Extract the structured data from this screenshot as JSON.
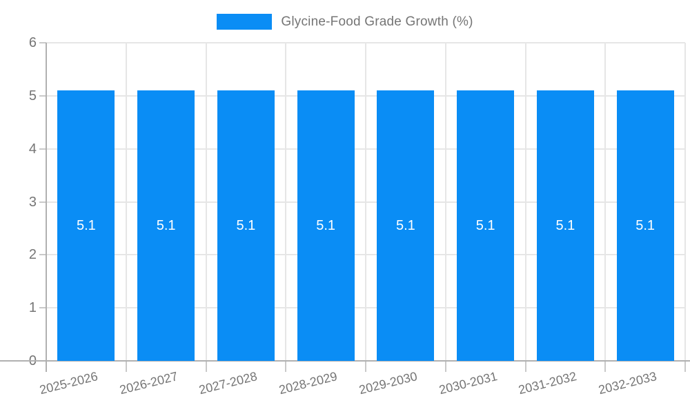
{
  "legend": {
    "label": "Glycine-Food Grade Growth (%)"
  },
  "chart_data": {
    "type": "bar",
    "title": "Glycine-Food Grade Growth (%)",
    "categories": [
      "2025-2026",
      "2026-2027",
      "2027-2028",
      "2028-2029",
      "2029-2030",
      "2030-2031",
      "2031-2032",
      "2032-2033"
    ],
    "values": [
      5.1,
      5.1,
      5.1,
      5.1,
      5.1,
      5.1,
      5.1,
      5.1
    ],
    "value_labels": [
      "5.1",
      "5.1",
      "5.1",
      "5.1",
      "5.1",
      "5.1",
      "5.1",
      "5.1"
    ],
    "xlabel": "",
    "ylabel": "",
    "ylim": [
      0,
      6
    ],
    "yticks": [
      0,
      1,
      2,
      3,
      4,
      5,
      6
    ],
    "grid": true,
    "legend_position": "top-center",
    "colors": {
      "bar": "#0a8df5",
      "axis": "#b0b0b0",
      "grid": "#e6e6e6",
      "tick": "#c9c9c9",
      "tick_label": "#757575",
      "value_label": "#ffffff",
      "background": "#ffffff"
    }
  }
}
